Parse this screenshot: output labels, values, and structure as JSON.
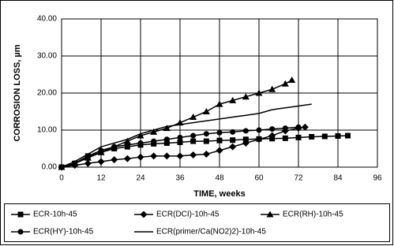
{
  "chart_data": {
    "type": "line",
    "x_label": "TIME, weeks",
    "y_label": "CORROSION LOSS, µm",
    "xlim": [
      0,
      96
    ],
    "xticks": [
      0,
      12,
      24,
      36,
      48,
      60,
      72,
      84,
      96
    ],
    "ylim": [
      0,
      40
    ],
    "yticks": [
      {
        "value": 0,
        "label": "0.00"
      },
      {
        "value": 10,
        "label": "10.00"
      },
      {
        "value": 20,
        "label": "20.00"
      },
      {
        "value": 30,
        "label": "30.00"
      },
      {
        "value": 40,
        "label": "40.00"
      }
    ],
    "grid": true,
    "legend": "bottom",
    "series": [
      {
        "name": "ECR-10h-45",
        "color": "#000000",
        "marker": "square",
        "x": [
          0,
          4,
          8,
          12,
          16,
          20,
          24,
          28,
          32,
          36,
          40,
          44,
          48,
          52,
          56,
          60,
          64,
          68,
          72,
          76,
          80,
          84,
          87
        ],
        "values": [
          0,
          1,
          3,
          4,
          5,
          5.5,
          6,
          6.3,
          6.5,
          6.7,
          7,
          7,
          7.2,
          7.3,
          7.5,
          7.6,
          7.7,
          7.8,
          8,
          8.2,
          8.3,
          8.4,
          8.5
        ]
      },
      {
        "name": "ECR(DCI)-10h-45",
        "color": "#000000",
        "marker": "diamond",
        "x": [
          0,
          4,
          8,
          12,
          16,
          20,
          24,
          28,
          32,
          36,
          40,
          44,
          48,
          52,
          56,
          60,
          64,
          68,
          72,
          74
        ],
        "values": [
          0,
          0.5,
          1,
          1.5,
          2,
          2.3,
          2.7,
          3,
          3,
          3,
          3.3,
          3.5,
          4.5,
          5.5,
          6.5,
          7.5,
          8.5,
          9.8,
          10.5,
          10.8
        ]
      },
      {
        "name": "ECR(RH)-10h-45",
        "color": "#000000",
        "marker": "triangle",
        "x": [
          0,
          4,
          8,
          12,
          16,
          20,
          24,
          28,
          32,
          36,
          40,
          44,
          48,
          52,
          56,
          60,
          64,
          68,
          70
        ],
        "values": [
          0,
          1,
          2.5,
          4,
          5.5,
          7,
          8.5,
          9.5,
          10.5,
          12,
          13.5,
          15,
          17,
          18,
          19,
          20,
          21,
          22.5,
          23.5
        ]
      },
      {
        "name": "ECR(HY)-10h-45",
        "color": "#000000",
        "marker": "circle",
        "x": [
          0,
          4,
          8,
          12,
          16,
          20,
          24,
          28,
          32,
          36,
          40,
          44,
          48,
          52,
          56,
          60,
          64,
          68,
          72
        ],
        "values": [
          0,
          1,
          3,
          4.5,
          5.5,
          6,
          6.5,
          7,
          7.5,
          8,
          8.5,
          9,
          9.3,
          9.5,
          9.8,
          10,
          10.3,
          10.5,
          10.8
        ]
      },
      {
        "name": "ECR(primer/Ca(NO2)2)-10h-45",
        "color": "#000000",
        "marker": "none",
        "x": [
          0,
          4,
          8,
          12,
          16,
          20,
          24,
          28,
          32,
          36,
          40,
          44,
          48,
          52,
          56,
          60,
          64,
          68,
          72,
          76
        ],
        "values": [
          0,
          1.5,
          3.5,
          5.5,
          6.5,
          7.5,
          9,
          10,
          11,
          11.5,
          12,
          12.5,
          13,
          13.5,
          14,
          14.5,
          15.5,
          16,
          16.5,
          17
        ]
      }
    ]
  }
}
